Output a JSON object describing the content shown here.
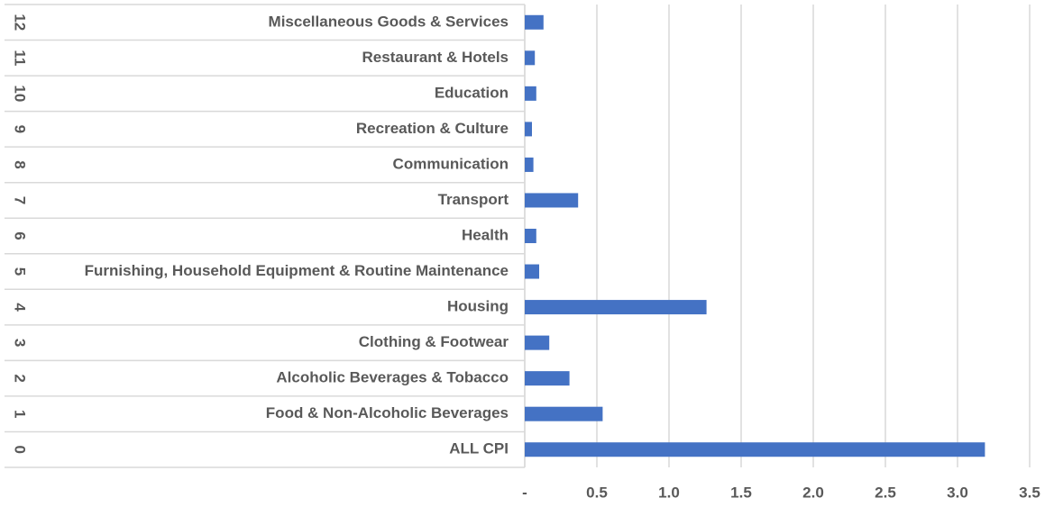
{
  "chart_data": {
    "type": "barh",
    "group_labels": [
      "0",
      "1",
      "2",
      "3",
      "4",
      "5",
      "6",
      "7",
      "8",
      "9",
      "10",
      "11",
      "12"
    ],
    "categories": [
      "ALL CPI",
      "Food & Non-Alcoholic Beverages",
      "Alcoholic Beverages & Tobacco",
      "Clothing & Footwear",
      "Housing",
      "Furnishing, Household Equipment & Routine Maintenance",
      "Health",
      "Transport",
      "Communication",
      "Recreation & Culture",
      "Education",
      "Restaurant & Hotels",
      "Miscellaneous Goods &  Services"
    ],
    "values": [
      3.19,
      0.54,
      0.31,
      0.17,
      1.26,
      0.1,
      0.08,
      0.37,
      0.06,
      0.05,
      0.08,
      0.07,
      0.13
    ],
    "color": "#4472c4",
    "xlim": [
      0,
      3.5
    ],
    "xticks": [
      {
        "value": 0,
        "label": "-"
      },
      0.5,
      {
        "value": 1,
        "label": "1.0"
      },
      1.5,
      {
        "value": 2,
        "label": "2.0"
      },
      2.5,
      {
        "value": 3,
        "label": "3.0"
      },
      3.5
    ],
    "grid": true
  }
}
